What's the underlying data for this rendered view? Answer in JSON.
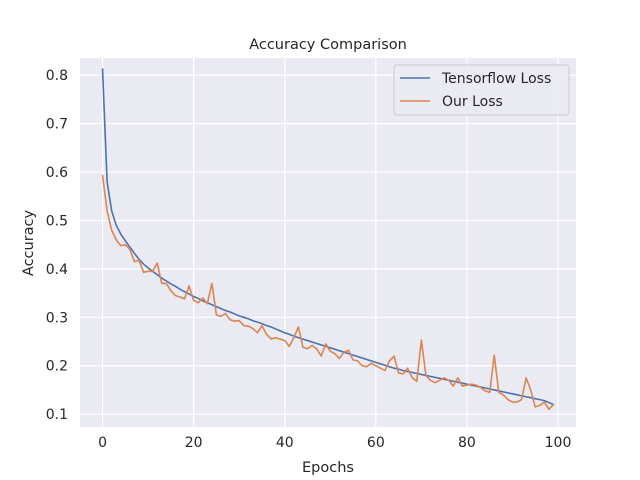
{
  "chart_data": {
    "type": "line",
    "title": "Accuracy Comparison",
    "xlabel": "Epochs",
    "ylabel": "Accuracy",
    "xlim": [
      -4.95,
      103.95
    ],
    "ylim": [
      0.0735,
      0.8355
    ],
    "xticks": [
      0,
      20,
      40,
      60,
      80,
      100
    ],
    "yticks": [
      0.1,
      0.2,
      0.3,
      0.4,
      0.5,
      0.6,
      0.7,
      0.8
    ],
    "xtick_labels": [
      "0",
      "20",
      "40",
      "60",
      "80",
      "100"
    ],
    "ytick_labels": [
      "0.1",
      "0.2",
      "0.3",
      "0.4",
      "0.5",
      "0.6",
      "0.7",
      "0.8"
    ],
    "grid": true,
    "legend_position": "top-right",
    "x": [
      0,
      1,
      2,
      3,
      4,
      5,
      6,
      7,
      8,
      9,
      10,
      11,
      12,
      13,
      14,
      15,
      16,
      17,
      18,
      19,
      20,
      21,
      22,
      23,
      24,
      25,
      26,
      27,
      28,
      29,
      30,
      31,
      32,
      33,
      34,
      35,
      36,
      37,
      38,
      39,
      40,
      41,
      42,
      43,
      44,
      45,
      46,
      47,
      48,
      49,
      50,
      51,
      52,
      53,
      54,
      55,
      56,
      57,
      58,
      59,
      60,
      61,
      62,
      63,
      64,
      65,
      66,
      67,
      68,
      69,
      70,
      71,
      72,
      73,
      74,
      75,
      76,
      77,
      78,
      79,
      80,
      81,
      82,
      83,
      84,
      85,
      86,
      87,
      88,
      89,
      90,
      91,
      92,
      93,
      94,
      95,
      96,
      97,
      98,
      99
    ],
    "series": [
      {
        "name": "Tensorflow Loss",
        "color": "#4c72b0",
        "values": [
          0.813,
          0.58,
          0.52,
          0.49,
          0.472,
          0.458,
          0.445,
          0.432,
          0.42,
          0.41,
          0.402,
          0.395,
          0.388,
          0.381,
          0.375,
          0.369,
          0.364,
          0.358,
          0.353,
          0.348,
          0.343,
          0.339,
          0.334,
          0.33,
          0.326,
          0.322,
          0.318,
          0.314,
          0.311,
          0.307,
          0.303,
          0.3,
          0.297,
          0.293,
          0.29,
          0.287,
          0.283,
          0.28,
          0.276,
          0.272,
          0.268,
          0.265,
          0.261,
          0.258,
          0.255,
          0.252,
          0.249,
          0.246,
          0.243,
          0.24,
          0.237,
          0.234,
          0.231,
          0.228,
          0.225,
          0.222,
          0.219,
          0.216,
          0.213,
          0.21,
          0.207,
          0.204,
          0.201,
          0.198,
          0.195,
          0.193,
          0.19,
          0.188,
          0.186,
          0.184,
          0.182,
          0.18,
          0.178,
          0.176,
          0.174,
          0.172,
          0.17,
          0.168,
          0.166,
          0.164,
          0.162,
          0.16,
          0.158,
          0.156,
          0.154,
          0.152,
          0.15,
          0.148,
          0.146,
          0.144,
          0.142,
          0.14,
          0.138,
          0.136,
          0.134,
          0.132,
          0.13,
          0.128,
          0.124,
          0.12
        ]
      },
      {
        "name": "Our Loss",
        "color": "#dd8452",
        "values": [
          0.593,
          0.52,
          0.48,
          0.46,
          0.448,
          0.45,
          0.44,
          0.415,
          0.418,
          0.393,
          0.395,
          0.395,
          0.412,
          0.37,
          0.37,
          0.355,
          0.345,
          0.342,
          0.338,
          0.365,
          0.335,
          0.33,
          0.34,
          0.328,
          0.37,
          0.305,
          0.302,
          0.308,
          0.295,
          0.292,
          0.293,
          0.283,
          0.282,
          0.277,
          0.268,
          0.283,
          0.265,
          0.255,
          0.258,
          0.255,
          0.252,
          0.24,
          0.258,
          0.28,
          0.238,
          0.235,
          0.242,
          0.235,
          0.22,
          0.245,
          0.23,
          0.225,
          0.215,
          0.228,
          0.232,
          0.212,
          0.21,
          0.2,
          0.198,
          0.205,
          0.2,
          0.195,
          0.19,
          0.21,
          0.22,
          0.185,
          0.183,
          0.195,
          0.175,
          0.168,
          0.253,
          0.18,
          0.17,
          0.165,
          0.17,
          0.175,
          0.17,
          0.158,
          0.175,
          0.158,
          0.16,
          0.162,
          0.16,
          0.155,
          0.148,
          0.145,
          0.222,
          0.145,
          0.14,
          0.13,
          0.125,
          0.125,
          0.13,
          0.175,
          0.15,
          0.115,
          0.118,
          0.125,
          0.11,
          0.12
        ]
      }
    ]
  },
  "colors": {
    "axes_bg": "#eaeaf2",
    "grid": "#ffffff",
    "text": "#262626",
    "legend_border": "#cccccc"
  }
}
